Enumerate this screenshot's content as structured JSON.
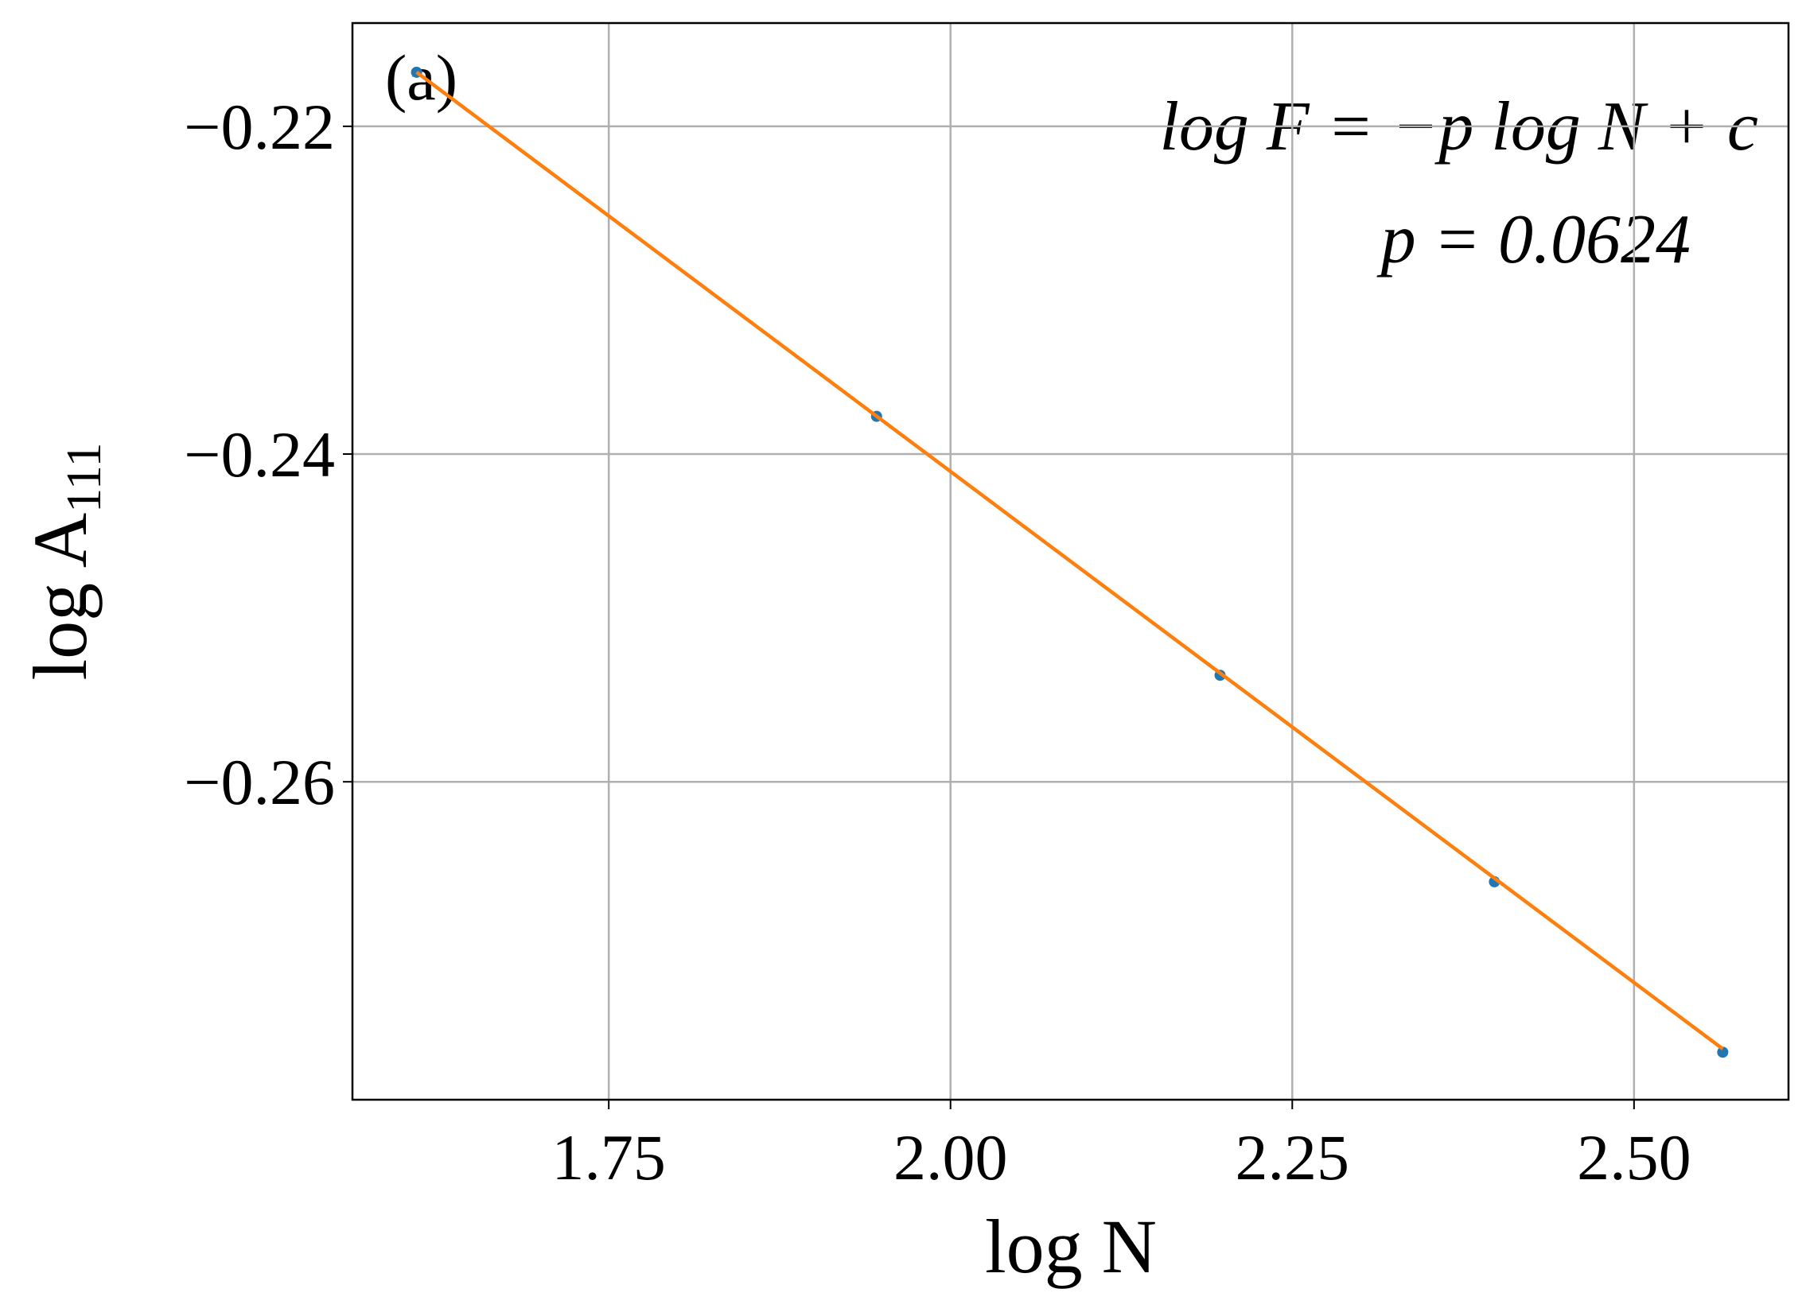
{
  "chart_data": {
    "type": "scatter",
    "title": "(a)",
    "annotations": [
      "log F = −p log N + c",
      "p = 0.0624"
    ],
    "xlabel": "log N",
    "ylabel": "log A",
    "ylabel_sub": "111",
    "series": [
      {
        "type": "scatter",
        "color": "#1f77b4",
        "x": [
          1.6094,
          1.9459,
          2.1972,
          2.3979,
          2.5649
        ],
        "values": [
          -0.2167,
          -0.2377,
          -0.2535,
          -0.2661,
          -0.2765
        ]
      },
      {
        "type": "line",
        "color": "#ff7f0e",
        "x": [
          1.6094,
          2.5649
        ],
        "values": [
          -0.2167,
          -0.2763
        ]
      }
    ],
    "xlim": [
      1.5625,
      2.613
    ],
    "ylim": [
      -0.2794,
      -0.2137
    ],
    "xticks": [
      1.75,
      {
        "value": 2,
        "label": "2.00"
      },
      2.25,
      {
        "value": 2.5,
        "label": "2.50"
      }
    ],
    "yticks": [
      {
        "value": -0.22,
        "label": "−0.22"
      },
      {
        "value": -0.24,
        "label": "−0.24"
      },
      {
        "value": -0.26,
        "label": "−0.26"
      }
    ],
    "grid": true
  }
}
